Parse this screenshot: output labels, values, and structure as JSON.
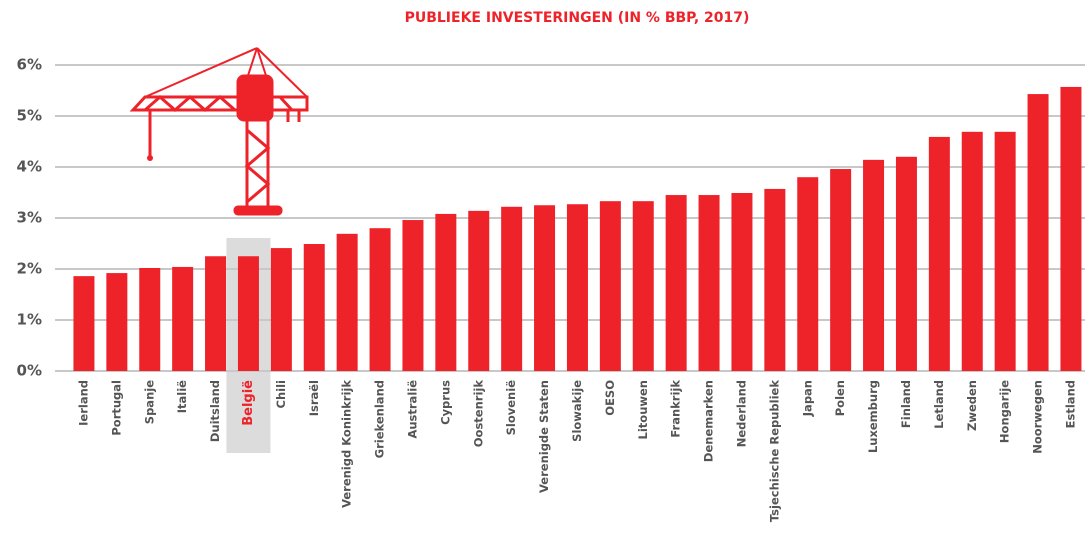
{
  "chart_data": {
    "type": "bar",
    "title": "PUBLIEKE INVESTERINGEN (IN % BBP, 2017)",
    "categories": [
      "Ierland",
      "Portugal",
      "Spanje",
      "Italië",
      "Duitsland",
      "België",
      "Chili",
      "Israël",
      "Verenigd Koninkrijk",
      "Griekenland",
      "Australië",
      "Cyprus",
      "Oostenrijk",
      "Slovenië",
      "Verenigde Staten",
      "Slowakije",
      "OESO",
      "Litouwen",
      "Frankrijk",
      "Denemarken",
      "Nederland",
      "Tsjechische Republiek",
      "Japan",
      "Polen",
      "Luxemburg",
      "Finland",
      "Letland",
      "Zweden",
      "Hongarije",
      "Noorwegen",
      "Estland"
    ],
    "values": [
      1.86,
      1.92,
      2.02,
      2.04,
      2.25,
      2.25,
      2.41,
      2.49,
      2.69,
      2.8,
      2.96,
      3.08,
      3.14,
      3.22,
      3.25,
      3.27,
      3.33,
      3.33,
      3.45,
      3.45,
      3.49,
      3.57,
      3.8,
      3.96,
      4.14,
      4.2,
      4.59,
      4.69,
      4.69,
      5.43,
      5.57
    ],
    "color": "#ee2229",
    "highlight": 5,
    "highlight_color": "#dcdcdc",
    "ylim": [
      0,
      6
    ],
    "yticks": [
      {
        "value": 0,
        "label": "0%"
      },
      {
        "value": 1,
        "label": "1%"
      },
      {
        "value": 2,
        "label": "2%"
      },
      {
        "value": 3,
        "label": "3%"
      },
      {
        "value": 4,
        "label": "4%"
      },
      {
        "value": 5,
        "label": "5%"
      },
      {
        "value": 6,
        "label": "6%"
      }
    ],
    "grid": true
  }
}
